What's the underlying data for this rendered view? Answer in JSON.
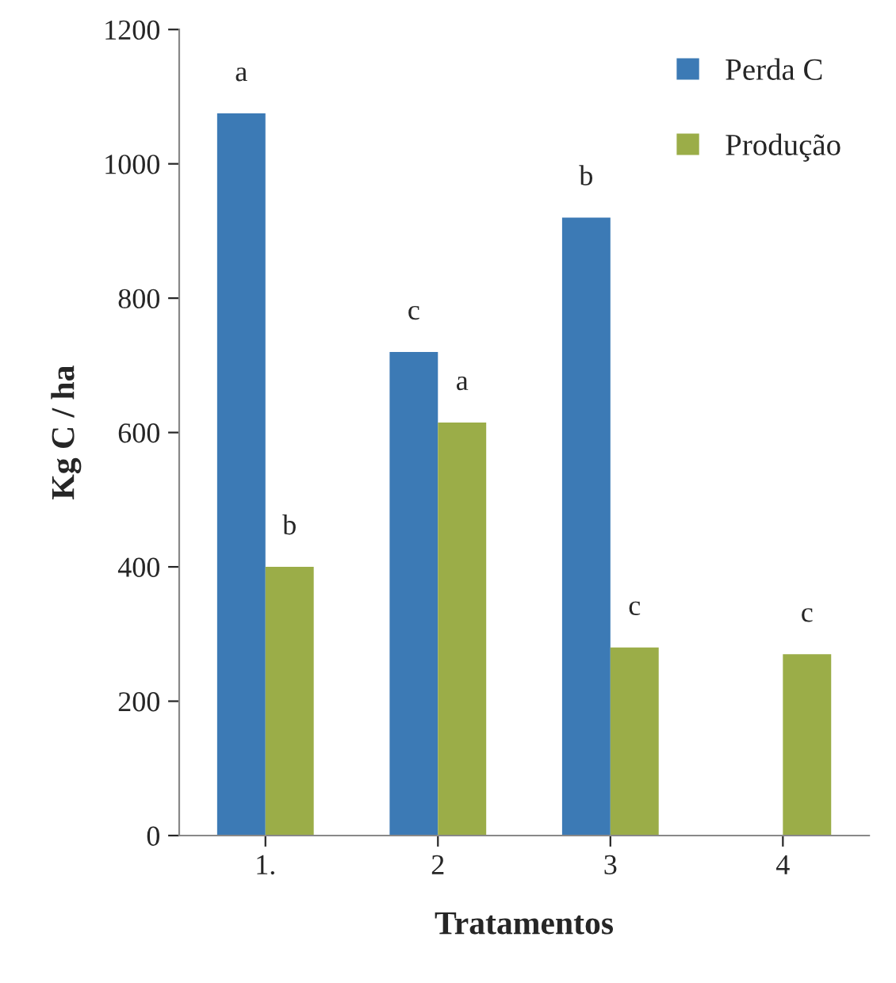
{
  "chart_data": {
    "type": "bar",
    "xlabel": "Tratamentos",
    "ylabel": "Kg C / ha",
    "categories": [
      "1.",
      "2",
      "3",
      "4"
    ],
    "series": [
      {
        "name": "Perda C",
        "color": "#3c7ab5",
        "values": [
          1075,
          720,
          920,
          null
        ]
      },
      {
        "name": "Produção",
        "color": "#9bad48",
        "values": [
          400,
          615,
          280,
          270
        ]
      }
    ],
    "ylim": [
      0,
      1200
    ],
    "yticks": [
      0,
      200,
      400,
      600,
      800,
      1000,
      1200
    ],
    "grid": false,
    "legend": "top right",
    "annotations": [
      {
        "text": "a",
        "x": "1.",
        "y": 1075
      },
      {
        "text": "b",
        "x": "1.",
        "y": 400
      },
      {
        "text": "c",
        "x": "2",
        "y": 720
      },
      {
        "text": "a",
        "x": "2",
        "y": 615
      },
      {
        "text": "b",
        "x": "3",
        "y": 920
      },
      {
        "text": "c",
        "x": "3",
        "y": 280
      },
      {
        "text": "c",
        "x": "4",
        "y": 270
      }
    ]
  }
}
